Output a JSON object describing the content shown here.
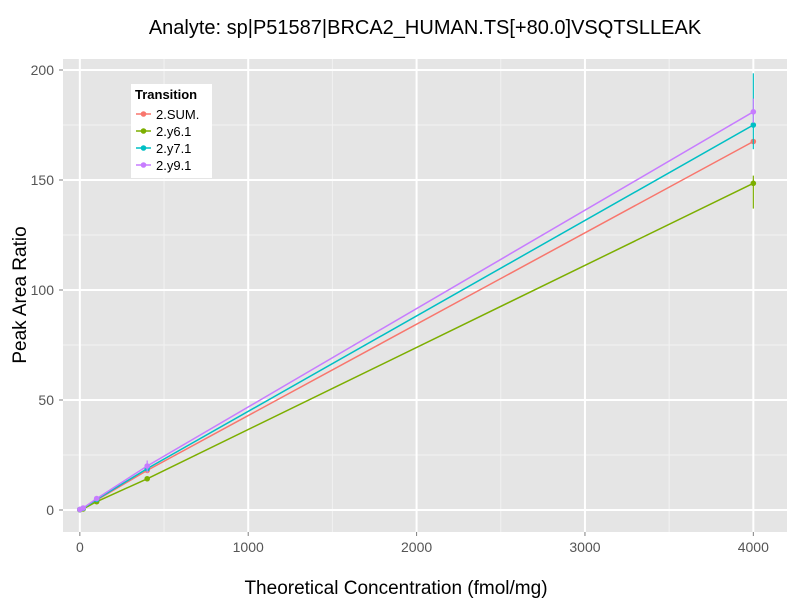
{
  "chart_data": {
    "type": "line",
    "title": "Analyte: sp|P51587|BRCA2_HUMAN.TS[+80.0]VSQTSLLEAK",
    "xlabel": "Theoretical Concentration (fmol/mg)",
    "ylabel": "Peak Area Ratio",
    "xlim": [
      -100,
      4200
    ],
    "ylim": [
      -10,
      205
    ],
    "x_ticks": [
      0,
      1000,
      2000,
      3000,
      4000
    ],
    "y_ticks": [
      0,
      50,
      100,
      150,
      200
    ],
    "x": [
      0,
      20,
      100,
      400,
      4000
    ],
    "legend": {
      "title": "Transition",
      "position": "top-left"
    },
    "series": [
      {
        "name": "2.SUM.",
        "color": "#F8766D",
        "values": [
          0.2,
          0.8,
          4.5,
          18.0,
          167.5
        ],
        "error_low": [
          0.2,
          0.8,
          4.5,
          18.0,
          167.5
        ],
        "error_high": [
          0.2,
          0.8,
          4.5,
          18.0,
          167.5
        ]
      },
      {
        "name": "2.y6.1",
        "color": "#7CAE00",
        "values": [
          0.1,
          0.5,
          3.8,
          14.2,
          148.5
        ],
        "error_low": [
          0.1,
          0.5,
          3.8,
          14.2,
          137.0
        ],
        "error_high": [
          0.1,
          0.5,
          3.8,
          14.2,
          152.0
        ]
      },
      {
        "name": "2.y7.1",
        "color": "#00BFC4",
        "values": [
          0.2,
          0.8,
          4.8,
          18.8,
          175.0
        ],
        "error_low": [
          0.2,
          0.8,
          4.8,
          18.8,
          164.0
        ],
        "error_high": [
          0.2,
          0.8,
          4.8,
          18.8,
          198.5
        ]
      },
      {
        "name": "2.y9.1",
        "color": "#C77CFF",
        "values": [
          0.2,
          0.9,
          5.2,
          20.0,
          181.0
        ],
        "error_low": [
          0.2,
          0.9,
          5.2,
          17.0,
          176.0
        ],
        "error_high": [
          0.2,
          0.9,
          5.2,
          22.5,
          187.0
        ]
      }
    ]
  }
}
